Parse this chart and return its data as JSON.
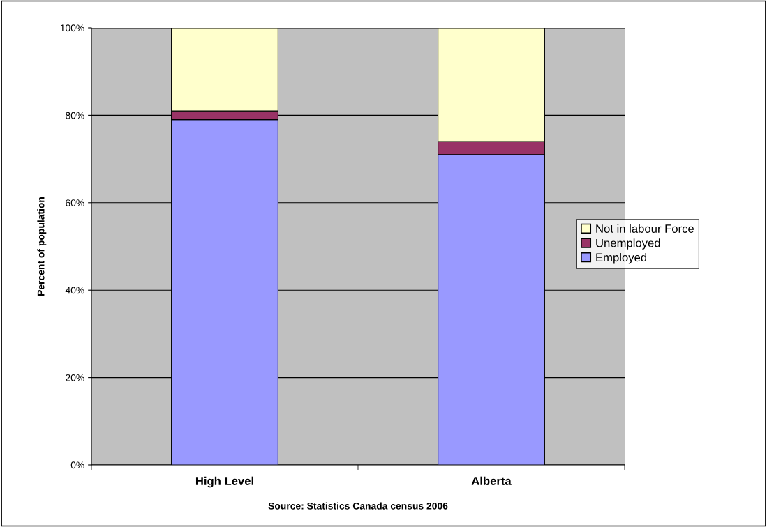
{
  "chart_data": {
    "type": "bar",
    "stacked": true,
    "ylabel": "Percent of population",
    "categories": [
      "High Level",
      "Alberta"
    ],
    "series": [
      {
        "name": "Employed",
        "color": "#9999ff",
        "values": [
          79,
          71
        ]
      },
      {
        "name": "Unemployed",
        "color": "#993366",
        "values": [
          2,
          3
        ]
      },
      {
        "name": "Not in labour Force",
        "color": "#ffffcc",
        "values": [
          19,
          26
        ]
      }
    ],
    "ylim": [
      0,
      100
    ],
    "yticks": [
      {
        "value": 0,
        "label": "0%"
      },
      {
        "value": 20,
        "label": "20%"
      },
      {
        "value": 40,
        "label": "40%"
      },
      {
        "value": 60,
        "label": "60%"
      },
      {
        "value": 80,
        "label": "80%"
      },
      {
        "value": 100,
        "label": "100%"
      }
    ],
    "grid": "y",
    "legend": "right",
    "annotations": [
      "Source: Statistics Canada census 2006"
    ]
  }
}
